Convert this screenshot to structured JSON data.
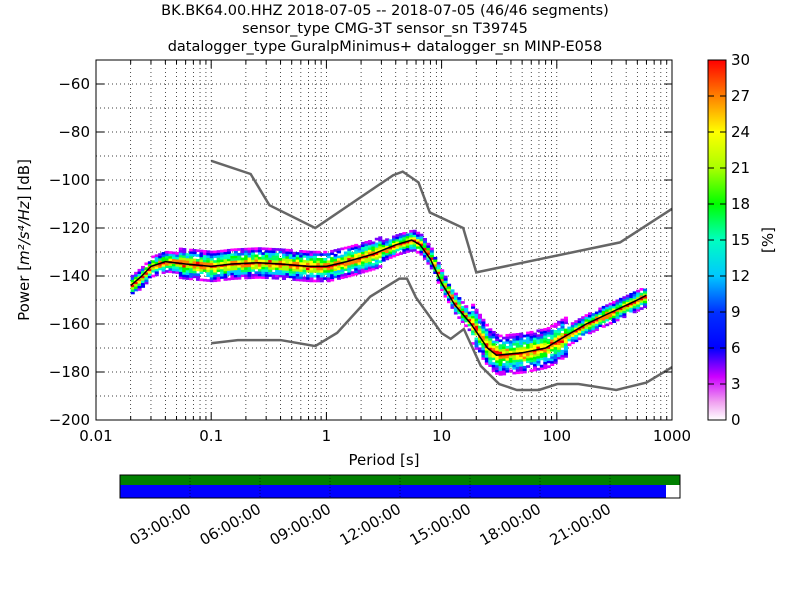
{
  "title": {
    "line1": "BK.BK64.00.HHZ   2018-07-05 -- 2018-07-05  (46/46 segments)",
    "line2": "sensor_type CMG-3T sensor_sn T39745",
    "line3": "datalogger_type GuralpMinimus+ datalogger_sn MINP-E058"
  },
  "chart_data": {
    "type": "heatmap",
    "xlabel": "Period [s]",
    "ylabel_prefix": "Power [",
    "ylabel_unit": "m²/s⁴/Hz",
    "ylabel_suffix": "] [dB]",
    "x_scale": "log",
    "xlim": [
      0.01,
      1000
    ],
    "ylim": [
      -200,
      -50
    ],
    "x_ticks": [
      0.01,
      0.1,
      1,
      10,
      100,
      1000
    ],
    "x_tick_labels": [
      "0.01",
      "0.1",
      "1",
      "10",
      "100",
      "1000"
    ],
    "y_ticks": [
      -200,
      -180,
      -160,
      -140,
      -120,
      -100,
      -80,
      -60
    ],
    "y_tick_labels": [
      "−200",
      "−180",
      "−160",
      "−140",
      "−120",
      "−100",
      "−80",
      "−60"
    ],
    "grid": "dotted",
    "colorbar": {
      "label": "[%]",
      "range": [
        0,
        30
      ],
      "ticks": [
        0,
        3,
        6,
        9,
        12,
        15,
        18,
        21,
        24,
        27,
        30
      ],
      "colormap": "pqlx"
    },
    "mean_curve": [
      [
        0.02,
        -144
      ],
      [
        0.025,
        -140
      ],
      [
        0.03,
        -136
      ],
      [
        0.04,
        -134
      ],
      [
        0.06,
        -135
      ],
      [
        0.1,
        -136
      ],
      [
        0.15,
        -135
      ],
      [
        0.25,
        -134.5
      ],
      [
        0.4,
        -135
      ],
      [
        0.7,
        -136
      ],
      [
        1,
        -136
      ],
      [
        1.5,
        -134
      ],
      [
        2.5,
        -131
      ],
      [
        4,
        -127
      ],
      [
        5.5,
        -125
      ],
      [
        6.5,
        -127
      ],
      [
        8,
        -133
      ],
      [
        10,
        -143
      ],
      [
        13,
        -152
      ],
      [
        18,
        -160
      ],
      [
        25,
        -170
      ],
      [
        30,
        -173
      ],
      [
        50,
        -172
      ],
      [
        80,
        -170
      ],
      [
        110,
        -166
      ],
      [
        180,
        -160
      ],
      [
        300,
        -155
      ],
      [
        500,
        -150
      ],
      [
        600,
        -148
      ]
    ],
    "nhnm": [
      [
        0.1,
        -92
      ],
      [
        0.22,
        -97.5
      ],
      [
        0.32,
        -110.5
      ],
      [
        0.8,
        -120
      ],
      [
        3.8,
        -98
      ],
      [
        4.6,
        -96.5
      ],
      [
        6.3,
        -101
      ],
      [
        7.9,
        -113.5
      ],
      [
        15.4,
        -120
      ],
      [
        20,
        -138.5
      ],
      [
        354,
        -126
      ],
      [
        1000,
        -112
      ]
    ],
    "nlnm": [
      [
        0.1,
        -168
      ],
      [
        0.17,
        -166.7
      ],
      [
        0.4,
        -166.7
      ],
      [
        0.8,
        -169.2
      ],
      [
        1.24,
        -163.7
      ],
      [
        2.4,
        -148.6
      ],
      [
        4.3,
        -141.1
      ],
      [
        5,
        -141.1
      ],
      [
        6,
        -149
      ],
      [
        10,
        -163.8
      ],
      [
        12,
        -166.2
      ],
      [
        15.6,
        -162.1
      ],
      [
        21.9,
        -177.5
      ],
      [
        31.6,
        -185
      ],
      [
        45,
        -187.5
      ],
      [
        70,
        -187.5
      ],
      [
        101,
        -185
      ],
      [
        154,
        -185
      ],
      [
        328,
        -187.5
      ],
      [
        600,
        -184.4
      ],
      [
        1000,
        -178
      ]
    ]
  },
  "timeline": {
    "tick_labels": [
      "03:00:00",
      "06:00:00",
      "09:00:00",
      "12:00:00",
      "15:00:00",
      "18:00:00",
      "21:00:00"
    ],
    "data_coverage_fraction": 0.975,
    "colors": {
      "coverage_top": "#008000",
      "coverage_bottom": "#0000ff"
    }
  }
}
